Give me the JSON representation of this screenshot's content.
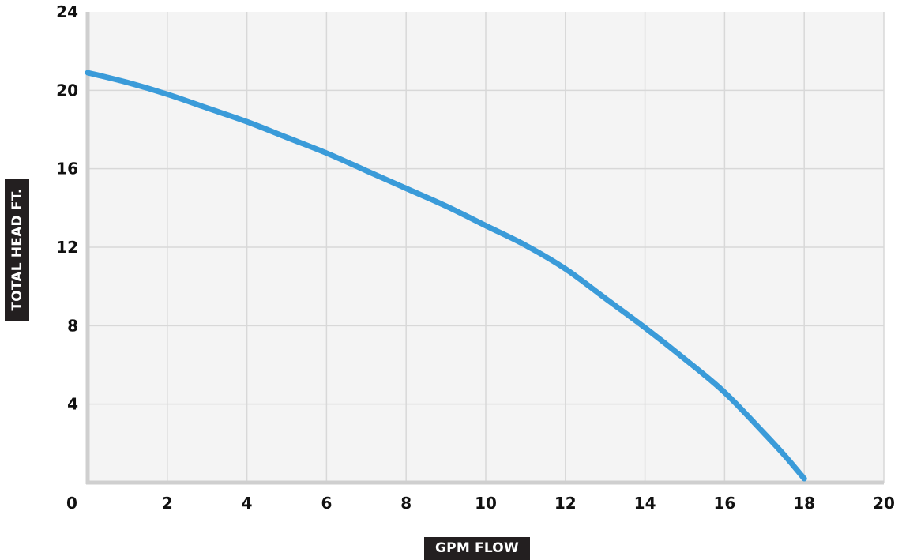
{
  "chart_data": {
    "type": "line",
    "xlabel": "GPM FLOW",
    "ylabel": "TOTAL HEAD FT.",
    "xlim": [
      0,
      20
    ],
    "ylim": [
      0,
      24
    ],
    "x_ticks": [
      "0",
      "2",
      "4",
      "6",
      "8",
      "10",
      "12",
      "14",
      "16",
      "18",
      "20"
    ],
    "y_ticks": [
      "4",
      "8",
      "12",
      "16",
      "20",
      "24"
    ],
    "grid": true,
    "colors": {
      "line": "#3a9bd9",
      "plot_bg": "#f4f4f4",
      "grid": "#d8d8d8",
      "axis": "#cfcfcf"
    },
    "series": [
      {
        "x": [
          0,
          1,
          2,
          3,
          4,
          5,
          6,
          7,
          8,
          9,
          10,
          11,
          12,
          13,
          14,
          15,
          16,
          17,
          17.5,
          18
        ],
        "y": [
          20.9,
          20.4,
          19.8,
          19.1,
          18.4,
          17.6,
          16.8,
          15.9,
          15.0,
          14.1,
          13.1,
          12.1,
          10.9,
          9.4,
          7.9,
          6.3,
          4.6,
          2.5,
          1.4,
          0.2
        ]
      }
    ]
  }
}
